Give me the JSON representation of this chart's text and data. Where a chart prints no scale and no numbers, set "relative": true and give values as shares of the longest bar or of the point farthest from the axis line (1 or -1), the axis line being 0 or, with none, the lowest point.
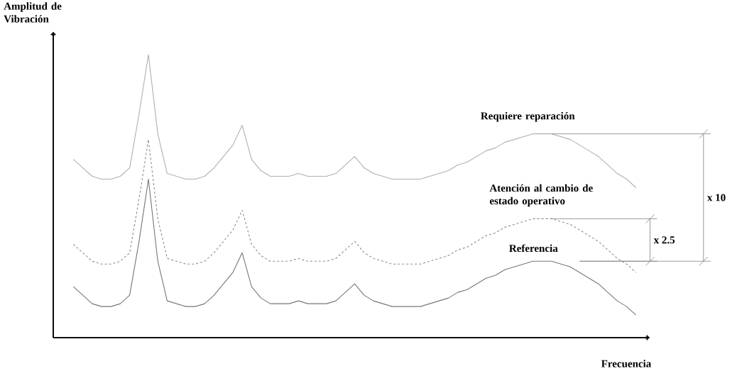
{
  "chart_data": {
    "type": "line",
    "relative": true,
    "xlabel": "Frecuencia",
    "ylabel": "Amplitud de Vibración",
    "categories": [
      null,
      null,
      null,
      null,
      null,
      null,
      null,
      null,
      null,
      null,
      null,
      null,
      null,
      null,
      null,
      null,
      null,
      null,
      null,
      null,
      null,
      null,
      null,
      null,
      null,
      null,
      null,
      null,
      null,
      null,
      null,
      null,
      null,
      null,
      null,
      null,
      null,
      null,
      null,
      null,
      null,
      null,
      null,
      null,
      null,
      null,
      null,
      null,
      null,
      null,
      null,
      null,
      null,
      null,
      null,
      null,
      null,
      null,
      null,
      null,
      null
    ],
    "series": [
      {
        "name": "Requiere reparación",
        "color": "#b0b0b0",
        "values": [
          0.63,
          0.6,
          0.57,
          0.56,
          0.56,
          0.57,
          0.6,
          0.79,
          1.0,
          0.72,
          0.58,
          0.57,
          0.56,
          0.56,
          0.57,
          0.6,
          0.64,
          0.68,
          0.75,
          0.63,
          0.59,
          0.57,
          0.57,
          0.57,
          0.58,
          0.57,
          0.57,
          0.57,
          0.58,
          0.61,
          0.64,
          0.6,
          0.58,
          0.57,
          0.56,
          0.56,
          0.56,
          0.56,
          0.57,
          0.58,
          0.59,
          0.61,
          0.62,
          0.64,
          0.66,
          0.67,
          0.69,
          0.7,
          0.71,
          0.72,
          0.72,
          0.72,
          0.71,
          0.7,
          0.68,
          0.66,
          0.64,
          0.61,
          0.58,
          0.56,
          0.53
        ]
      },
      {
        "name": "Atención al cambio de estado operativo",
        "color": "#8a8a8a",
        "line_style": "dashed",
        "values": [
          0.33,
          0.3,
          0.27,
          0.26,
          0.26,
          0.27,
          0.3,
          0.49,
          0.7,
          0.42,
          0.28,
          0.27,
          0.26,
          0.26,
          0.27,
          0.3,
          0.34,
          0.38,
          0.45,
          0.33,
          0.29,
          0.27,
          0.27,
          0.27,
          0.28,
          0.27,
          0.27,
          0.27,
          0.28,
          0.31,
          0.34,
          0.3,
          0.28,
          0.27,
          0.26,
          0.26,
          0.26,
          0.26,
          0.27,
          0.28,
          0.29,
          0.31,
          0.32,
          0.34,
          0.36,
          0.37,
          0.39,
          0.4,
          0.41,
          0.42,
          0.42,
          0.42,
          0.41,
          0.4,
          0.38,
          0.36,
          0.34,
          0.31,
          0.28,
          0.26,
          0.23
        ]
      },
      {
        "name": "Referencia",
        "color": "#777777",
        "values": [
          0.18,
          0.15,
          0.12,
          0.11,
          0.11,
          0.12,
          0.15,
          0.34,
          0.56,
          0.27,
          0.13,
          0.12,
          0.11,
          0.11,
          0.12,
          0.15,
          0.19,
          0.23,
          0.3,
          0.18,
          0.14,
          0.12,
          0.12,
          0.12,
          0.13,
          0.12,
          0.12,
          0.12,
          0.13,
          0.16,
          0.19,
          0.15,
          0.13,
          0.12,
          0.11,
          0.11,
          0.11,
          0.11,
          0.12,
          0.13,
          0.14,
          0.16,
          0.17,
          0.19,
          0.21,
          0.22,
          0.24,
          0.25,
          0.26,
          0.27,
          0.27,
          0.27,
          0.26,
          0.25,
          0.23,
          0.21,
          0.19,
          0.16,
          0.13,
          0.11,
          0.08
        ]
      }
    ],
    "annotations": [
      "x 10",
      "x 2.5"
    ]
  }
}
